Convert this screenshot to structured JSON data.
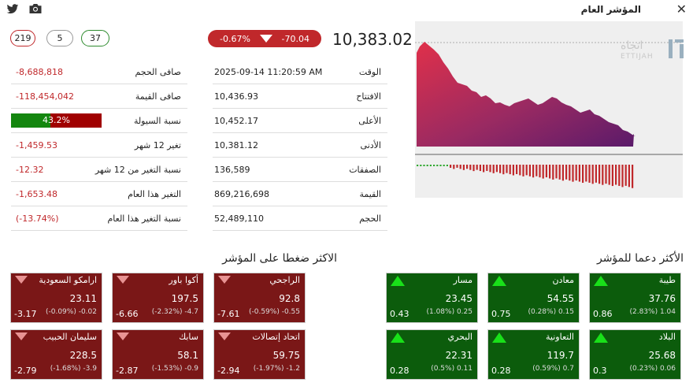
{
  "header": {
    "title": "المؤشر العام",
    "close_icon": "close-icon",
    "twitter_icon": "twitter-icon",
    "camera_icon": "camera-icon"
  },
  "badges": {
    "decliners": "219",
    "unchanged": "5",
    "advancers": "37"
  },
  "index": {
    "change_pct": "-0.67%",
    "change": "-70.04",
    "value": "10,383.02",
    "direction_icon": "down-triangle-icon"
  },
  "stats_mid": [
    {
      "label": "الوقت",
      "value": "2025-09-14 11:20:59 AM"
    },
    {
      "label": "الافتتاح",
      "value": "10,436.93"
    },
    {
      "label": "الأعلى",
      "value": "10,452.17"
    },
    {
      "label": "الأدنى",
      "value": "10,381.12"
    },
    {
      "label": "الصفقات",
      "value": "136,589"
    },
    {
      "label": "القيمة",
      "value": "869,216,698"
    },
    {
      "label": "الحجم",
      "value": "52,489,110"
    }
  ],
  "stats_left": [
    {
      "label": "صافى الحجم",
      "value": "-8,688,818"
    },
    {
      "label": "صافى القيمة",
      "value": "-118,454,042"
    },
    {
      "label": "نسبة السيولة",
      "value": "43.2%",
      "fraction": 0.432
    },
    {
      "label": "تغير 12 شهر",
      "value": "-1,459.53"
    },
    {
      "label": "نسبة التغير من 12 شهر",
      "value": "-12.32"
    },
    {
      "label": "التغير هذا العام",
      "value": "-1,653.48"
    },
    {
      "label": "نسبة التغير هذا العام",
      "value": "(-13.74%)"
    }
  ],
  "logo": {
    "arabic": "اتجاه",
    "latin": "ETTIJAH"
  },
  "sections": {
    "pressure_title": "الاكثر ضغطا على المؤشر",
    "support_title": "الأكثر دعما للمؤشر"
  },
  "pressure_cards": [
    {
      "name": "الراجحي",
      "price": "92.8",
      "change": "(-0.59%) -0.55",
      "weight": "-7.61"
    },
    {
      "name": "أكوا باور",
      "price": "197.5",
      "change": "(-2.32%) -4.7",
      "weight": "-6.66"
    },
    {
      "name": "ارامكو السعودية",
      "price": "23.11",
      "change": "(-0.09%) -0.02",
      "weight": "-3.17"
    },
    {
      "name": "اتحاد إتصالات",
      "price": "59.75",
      "change": "(-1.97%) -1.2",
      "weight": "-2.94"
    },
    {
      "name": "سابك",
      "price": "58.1",
      "change": "(-1.53%) -0.9",
      "weight": "-2.87"
    },
    {
      "name": "سليمان الحبيب",
      "price": "228.5",
      "change": "(-1.68%) -3.9",
      "weight": "-2.79"
    }
  ],
  "support_cards": [
    {
      "name": "طيبة",
      "price": "37.76",
      "change": "(2.83%) 1.04",
      "weight": "0.86"
    },
    {
      "name": "معادن",
      "price": "54.55",
      "change": "(0.28%) 0.15",
      "weight": "0.75"
    },
    {
      "name": "مسار",
      "price": "23.45",
      "change": "(1.08%) 0.25",
      "weight": "0.43"
    },
    {
      "name": "البلاد",
      "price": "25.68",
      "change": "(0.23%) 0.06",
      "weight": "0.3"
    },
    {
      "name": "التعاونية",
      "price": "119.7",
      "change": "(0.59%) 0.7",
      "weight": "0.28"
    },
    {
      "name": "البحري",
      "price": "22.31",
      "change": "(0.5%) 0.11",
      "weight": "0.28"
    }
  ],
  "colors": {
    "negative": "#c0282b",
    "positive": "#0c5c0c",
    "down_card": "#7a1717"
  }
}
